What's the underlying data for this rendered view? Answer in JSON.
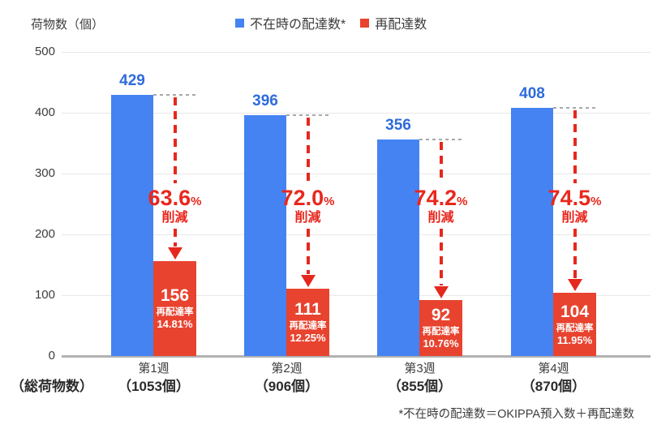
{
  "title": "荷物数（個）",
  "legend": [
    {
      "label": "不在時の配達数*",
      "color": "#4583f2"
    },
    {
      "label": "再配達数",
      "color": "#e8432f"
    }
  ],
  "x_axis_prefix_label": "（総荷物数）",
  "footnote": "*不在時の配達数＝OKIPPA預入数＋再配達数",
  "chart_data": {
    "type": "bar",
    "title": "荷物数（個）",
    "ylabel": "荷物数（個）",
    "xlabel": "",
    "ylim": [
      0,
      500
    ],
    "yticks": [
      0,
      100,
      200,
      300,
      400,
      500
    ],
    "grid": true,
    "legend_position": "top",
    "categories": [
      "第1週",
      "第2週",
      "第3週",
      "第4週"
    ],
    "category_totals": [
      "（1053個）",
      "（906個）",
      "（855個）",
      "（870個）"
    ],
    "series": [
      {
        "name": "不在時の配達数*",
        "color": "#4583f2",
        "values": [
          429,
          396,
          356,
          408
        ]
      },
      {
        "name": "再配達数",
        "color": "#e8432f",
        "values": [
          156,
          111,
          92,
          104
        ]
      }
    ],
    "annotations": {
      "reduction_percents": [
        "63.6",
        "72.0",
        "74.2",
        "74.5"
      ],
      "percent_symbol": "%",
      "reduction_word": "削減",
      "redelivery_rate_word": "再配達率",
      "redelivery_rates": [
        "14.81%",
        "12.25%",
        "10.76%",
        "11.95%"
      ]
    }
  }
}
